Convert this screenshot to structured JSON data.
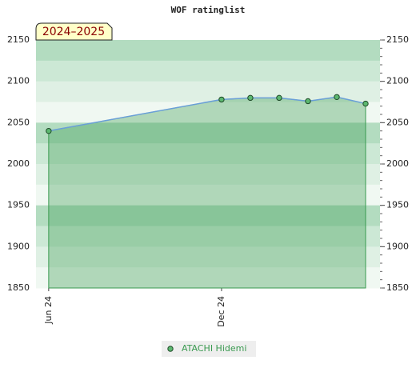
{
  "chart_data": {
    "type": "area-line",
    "title": "WOF ratinglist",
    "badge": "2024–2025",
    "x": [
      0,
      6,
      7,
      8,
      9,
      10,
      11
    ],
    "xlim": [
      -0.44,
      11.5
    ],
    "xticks": [
      {
        "value": 0,
        "label": "Jun 24"
      },
      {
        "value": 6,
        "label": "Dec 24"
      }
    ],
    "ylim": [
      1850,
      2150
    ],
    "yticks": [
      1850,
      1900,
      1950,
      2000,
      2050,
      2100,
      2150
    ],
    "series": [
      {
        "name": "ATACHI Hidemi",
        "color": "#3a9a50",
        "values": [
          2040,
          2078,
          2080,
          2080,
          2076,
          2081,
          2073
        ]
      }
    ]
  }
}
